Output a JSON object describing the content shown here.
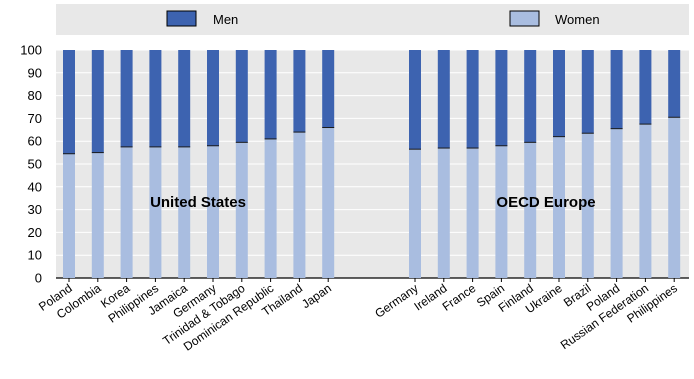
{
  "chart_data": {
    "type": "bar",
    "stacked": true,
    "ylim": [
      0,
      100
    ],
    "yticks": [
      0,
      10,
      20,
      30,
      40,
      50,
      60,
      70,
      80,
      90,
      100
    ],
    "grid": true,
    "legend_position": "top",
    "series": [
      {
        "name": "Men",
        "color": "#3d63b0"
      },
      {
        "name": "Women",
        "color": "#a9bde0"
      }
    ],
    "panels": [
      {
        "label": "United States",
        "categories": [
          "Poland",
          "Colombia",
          "Korea",
          "Philippines",
          "Jamaica",
          "Germany",
          "Trinidad & Tobago",
          "Dominican Republic",
          "Thailand",
          "Japan"
        ],
        "women": [
          54.5,
          55,
          57.5,
          57.5,
          57.5,
          58,
          59.5,
          61,
          64,
          66
        ],
        "men": [
          45.5,
          45,
          42.5,
          42.5,
          42.5,
          42,
          40.5,
          39,
          36,
          34
        ]
      },
      {
        "label": "OECD Europe",
        "categories": [
          "Germany",
          "Ireland",
          "France",
          "Spain",
          "Finland",
          "Ukraine",
          "Brazil",
          "Poland",
          "Russian Federation",
          "Philippines"
        ],
        "women": [
          56.5,
          57,
          57,
          58,
          59.5,
          62,
          63.5,
          65.5,
          67.5,
          70.5
        ],
        "men": [
          43.5,
          43,
          43,
          42,
          40.5,
          38,
          36.5,
          34.5,
          32.5,
          29.5
        ]
      }
    ]
  }
}
